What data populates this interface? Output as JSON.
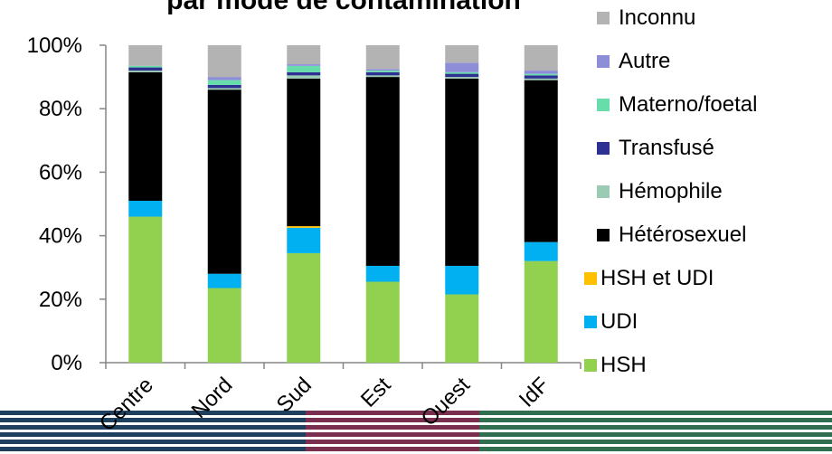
{
  "chart_data": {
    "type": "bar",
    "stacked": true,
    "title": "par mode de contamination",
    "categories": [
      "Centre",
      "Nord",
      "Sud",
      "Est",
      "Ouest",
      "IdF"
    ],
    "ylim": [
      0,
      100
    ],
    "y_ticks": [
      "0%",
      "20%",
      "40%",
      "60%",
      "80%",
      "100%"
    ],
    "series": [
      {
        "name": "HSH",
        "color": "#92D050",
        "values": [
          46,
          23.5,
          34.5,
          25.5,
          21.5,
          32
        ]
      },
      {
        "name": "UDI",
        "color": "#00B0F0",
        "values": [
          5,
          4.5,
          8,
          5,
          9,
          6
        ]
      },
      {
        "name": "HSH et UDI",
        "color": "#FFC000",
        "values": [
          0,
          0,
          0.5,
          0,
          0,
          0
        ]
      },
      {
        "name": "Hétérosexuel",
        "color": "#000000",
        "values": [
          40.5,
          58,
          46.5,
          59.5,
          59,
          51
        ]
      },
      {
        "name": "Hémophile",
        "color": "#99CCB3",
        "values": [
          0.5,
          0.5,
          1,
          0.5,
          0.5,
          0.5
        ]
      },
      {
        "name": "Transfusé",
        "color": "#2E3192",
        "values": [
          1,
          1,
          1,
          1,
          1,
          1
        ]
      },
      {
        "name": "Materno/foetal",
        "color": "#66DDAA",
        "values": [
          0.5,
          1.5,
          2,
          0.5,
          0.5,
          0.5
        ]
      },
      {
        "name": "Autre",
        "color": "#8E8ED8",
        "values": [
          0,
          1,
          0.5,
          0.5,
          3,
          1
        ]
      },
      {
        "name": "Inconnu",
        "color": "#B3B3B3",
        "values": [
          6.5,
          10,
          6,
          7.5,
          5.5,
          8
        ]
      }
    ],
    "legend_order": [
      "Inconnu",
      "Autre",
      "Materno/foetal",
      "Transfusé",
      "Hémophile",
      "Hétérosexuel",
      "HSH et UDI",
      "UDI",
      "HSH"
    ],
    "legend_position": "right",
    "grid": false
  },
  "colors": {
    "footer_navy": "#1F3F5F",
    "footer_maroon": "#7A2F4F",
    "footer_green": "#2F6F4F",
    "footer_light": "#ffffff"
  }
}
